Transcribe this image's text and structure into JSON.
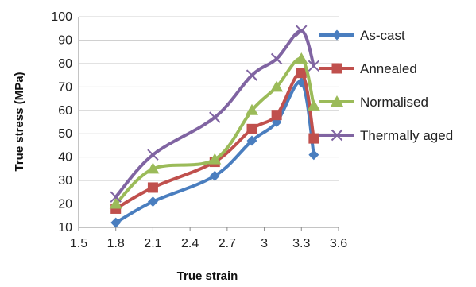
{
  "chart_data": {
    "type": "line",
    "title": "",
    "xlabel": "True strain",
    "ylabel": "True stress (MPa)",
    "xlim": [
      1.5,
      3.6
    ],
    "ylim": [
      10,
      100
    ],
    "x_ticks": [
      "1.5",
      "1.8",
      "2.1",
      "2.4",
      "2.7",
      "3",
      "3.3",
      "3.6"
    ],
    "y_ticks": [
      "10",
      "20",
      "30",
      "40",
      "50",
      "60",
      "70",
      "80",
      "90",
      "100"
    ],
    "grid": "horizontal",
    "legend_position": "right",
    "series": [
      {
        "name": "As-cast",
        "color": "#4a7ebf",
        "marker": "diamond",
        "x": [
          1.8,
          2.1,
          2.6,
          2.9,
          3.1,
          3.3,
          3.4
        ],
        "y": [
          12,
          21,
          32,
          47,
          55,
          72,
          41
        ]
      },
      {
        "name": "Annealed",
        "color": "#c0504d",
        "marker": "square",
        "x": [
          1.8,
          2.1,
          2.6,
          2.9,
          3.1,
          3.3,
          3.4
        ],
        "y": [
          18,
          27,
          38,
          52,
          58,
          76,
          48
        ]
      },
      {
        "name": "Normalised",
        "color": "#9bbb59",
        "marker": "triangle",
        "x": [
          1.8,
          2.1,
          2.6,
          2.9,
          3.1,
          3.3,
          3.4
        ],
        "y": [
          20,
          35,
          39,
          60,
          70,
          82,
          62
        ]
      },
      {
        "name": "Thermally aged",
        "color": "#8064a2",
        "marker": "x",
        "x": [
          1.8,
          2.1,
          2.6,
          2.9,
          3.1,
          3.3,
          3.4
        ],
        "y": [
          23,
          41,
          57,
          75,
          82,
          94,
          79
        ]
      }
    ]
  }
}
